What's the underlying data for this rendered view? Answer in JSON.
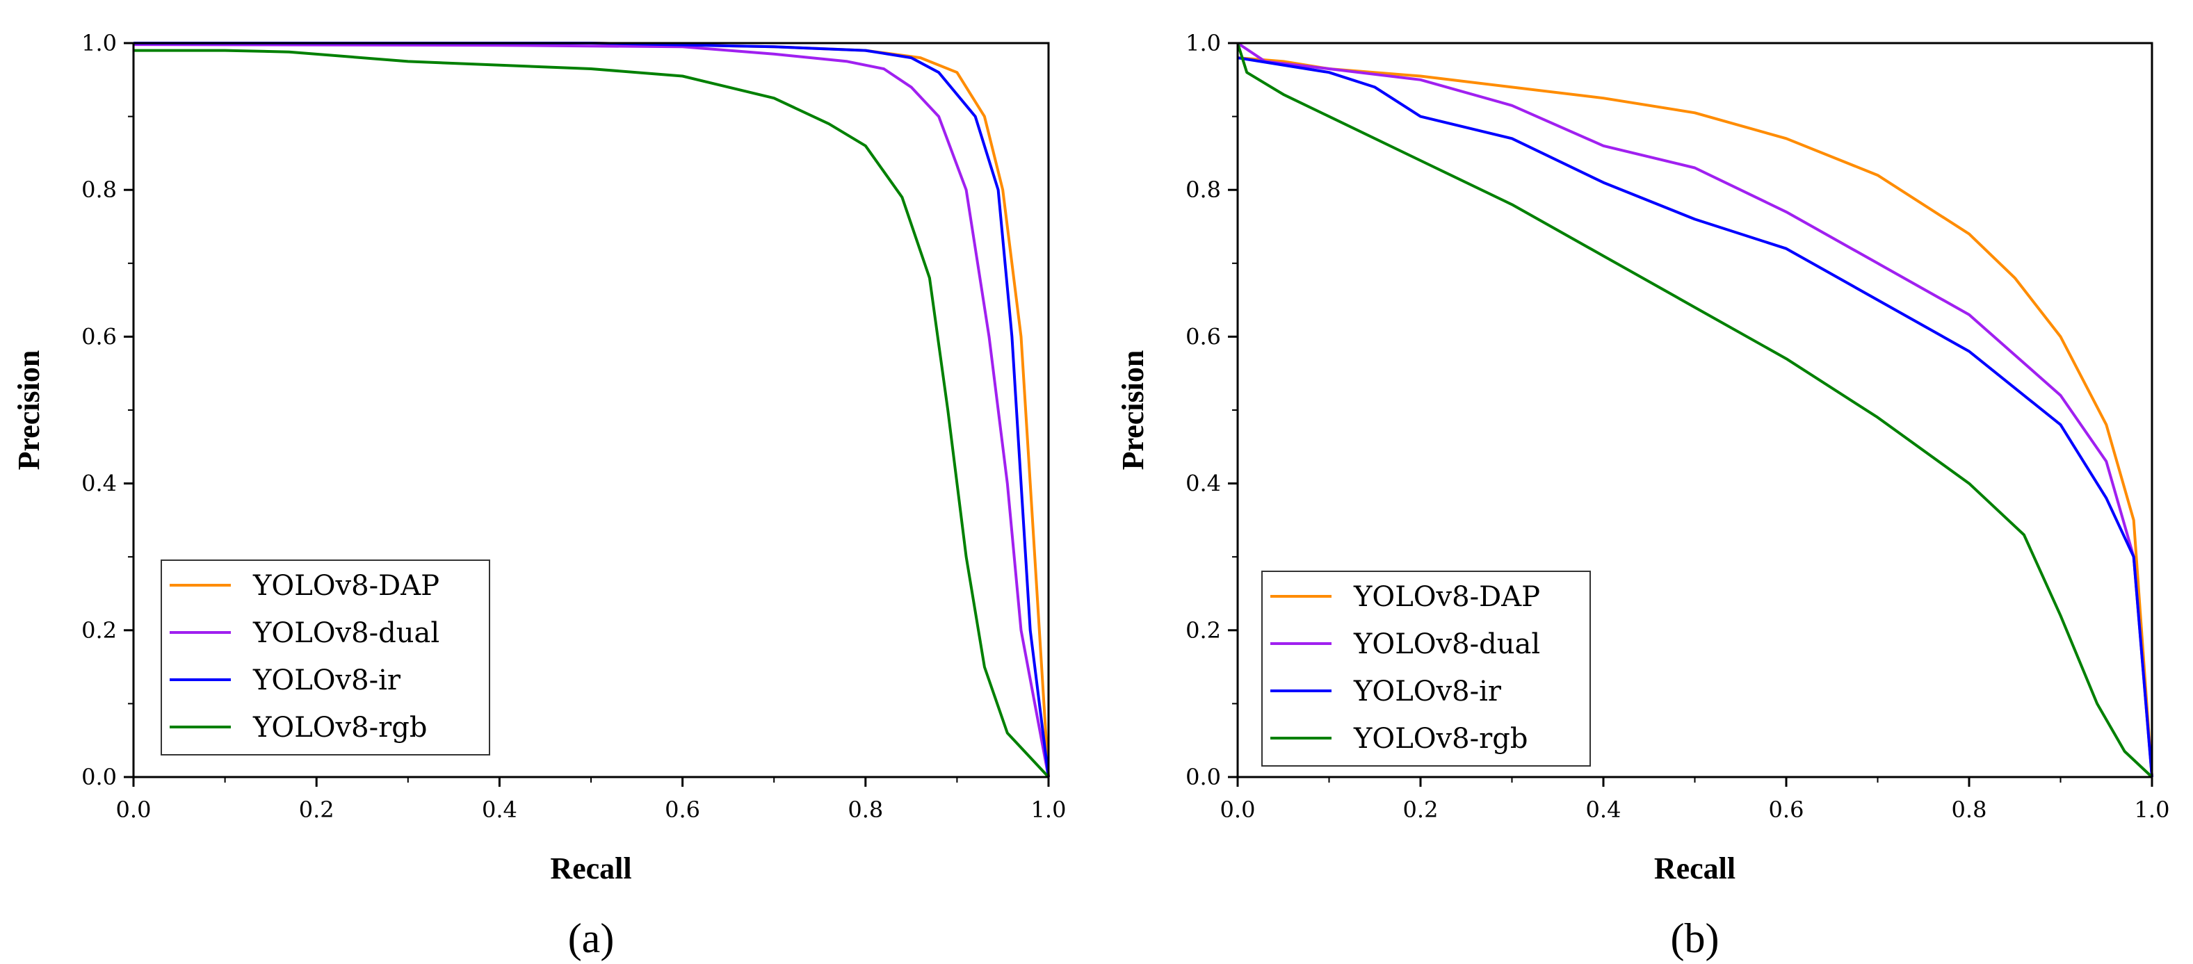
{
  "chart_data": [
    {
      "type": "line",
      "panel_label": "(a)",
      "xlabel": "Recall",
      "ylabel": "Precision",
      "xlim": [
        0,
        1
      ],
      "ylim": [
        0,
        1
      ],
      "xticks": [
        "0.0",
        "0.2",
        "0.4",
        "0.6",
        "0.8",
        "1.0"
      ],
      "yticks": [
        "0.0",
        "0.2",
        "0.4",
        "0.6",
        "0.8",
        "1.0"
      ],
      "legend_position": "bottom-left",
      "series": [
        {
          "name": "YOLOv8-DAP",
          "color": "#ff8c00",
          "points": [
            [
              0,
              1.0
            ],
            [
              0.5,
              1.0
            ],
            [
              0.7,
              0.995
            ],
            [
              0.8,
              0.99
            ],
            [
              0.86,
              0.98
            ],
            [
              0.9,
              0.96
            ],
            [
              0.93,
              0.9
            ],
            [
              0.95,
              0.8
            ],
            [
              0.97,
              0.6
            ],
            [
              0.98,
              0.4
            ],
            [
              0.99,
              0.2
            ],
            [
              1.0,
              0.0
            ]
          ]
        },
        {
          "name": "YOLOv8-dual",
          "color": "#a020f0",
          "points": [
            [
              0,
              0.998
            ],
            [
              0.4,
              0.997
            ],
            [
              0.6,
              0.995
            ],
            [
              0.7,
              0.985
            ],
            [
              0.78,
              0.975
            ],
            [
              0.82,
              0.965
            ],
            [
              0.85,
              0.94
            ],
            [
              0.88,
              0.9
            ],
            [
              0.91,
              0.8
            ],
            [
              0.935,
              0.6
            ],
            [
              0.955,
              0.4
            ],
            [
              0.97,
              0.2
            ],
            [
              1.0,
              0.0
            ]
          ]
        },
        {
          "name": "YOLOv8-ir",
          "color": "#0000ff",
          "points": [
            [
              0,
              1.0
            ],
            [
              0.5,
              1.0
            ],
            [
              0.7,
              0.995
            ],
            [
              0.8,
              0.99
            ],
            [
              0.85,
              0.98
            ],
            [
              0.88,
              0.96
            ],
            [
              0.92,
              0.9
            ],
            [
              0.945,
              0.8
            ],
            [
              0.96,
              0.6
            ],
            [
              0.97,
              0.4
            ],
            [
              0.98,
              0.2
            ],
            [
              1.0,
              0.0
            ]
          ]
        },
        {
          "name": "YOLOv8-rgb",
          "color": "#008000",
          "points": [
            [
              0,
              0.99
            ],
            [
              0.1,
              0.99
            ],
            [
              0.17,
              0.988
            ],
            [
              0.3,
              0.975
            ],
            [
              0.5,
              0.965
            ],
            [
              0.6,
              0.955
            ],
            [
              0.7,
              0.925
            ],
            [
              0.76,
              0.89
            ],
            [
              0.8,
              0.86
            ],
            [
              0.84,
              0.79
            ],
            [
              0.87,
              0.68
            ],
            [
              0.89,
              0.5
            ],
            [
              0.91,
              0.3
            ],
            [
              0.93,
              0.15
            ],
            [
              0.955,
              0.06
            ],
            [
              1.0,
              0.0
            ]
          ]
        }
      ]
    },
    {
      "type": "line",
      "panel_label": "(b)",
      "xlabel": "Recall",
      "ylabel": "Precision",
      "xlim": [
        0,
        1
      ],
      "ylim": [
        0,
        1
      ],
      "xticks": [
        "0.0",
        "0.2",
        "0.4",
        "0.6",
        "0.8",
        "1.0"
      ],
      "yticks": [
        "0.0",
        "0.2",
        "0.4",
        "0.6",
        "0.8",
        "1.0"
      ],
      "legend_position": "bottom-left",
      "series": [
        {
          "name": "YOLOv8-DAP",
          "color": "#ff8c00",
          "points": [
            [
              0,
              0.98
            ],
            [
              0.05,
              0.975
            ],
            [
              0.1,
              0.965
            ],
            [
              0.2,
              0.955
            ],
            [
              0.3,
              0.94
            ],
            [
              0.4,
              0.925
            ],
            [
              0.5,
              0.905
            ],
            [
              0.6,
              0.87
            ],
            [
              0.7,
              0.82
            ],
            [
              0.8,
              0.74
            ],
            [
              0.85,
              0.68
            ],
            [
              0.9,
              0.6
            ],
            [
              0.95,
              0.48
            ],
            [
              0.98,
              0.35
            ],
            [
              1.0,
              0.0
            ]
          ]
        },
        {
          "name": "YOLOv8-dual",
          "color": "#a020f0",
          "points": [
            [
              0,
              1.0
            ],
            [
              0.03,
              0.975
            ],
            [
              0.1,
              0.965
            ],
            [
              0.2,
              0.95
            ],
            [
              0.3,
              0.915
            ],
            [
              0.4,
              0.86
            ],
            [
              0.5,
              0.83
            ],
            [
              0.6,
              0.77
            ],
            [
              0.7,
              0.7
            ],
            [
              0.8,
              0.63
            ],
            [
              0.9,
              0.52
            ],
            [
              0.95,
              0.43
            ],
            [
              0.98,
              0.3
            ],
            [
              1.0,
              0.0
            ]
          ]
        },
        {
          "name": "YOLOv8-ir",
          "color": "#0000ff",
          "points": [
            [
              0,
              0.98
            ],
            [
              0.1,
              0.96
            ],
            [
              0.15,
              0.94
            ],
            [
              0.2,
              0.9
            ],
            [
              0.3,
              0.87
            ],
            [
              0.4,
              0.81
            ],
            [
              0.5,
              0.76
            ],
            [
              0.6,
              0.72
            ],
            [
              0.7,
              0.65
            ],
            [
              0.8,
              0.58
            ],
            [
              0.9,
              0.48
            ],
            [
              0.95,
              0.38
            ],
            [
              0.98,
              0.3
            ],
            [
              1.0,
              0.0
            ]
          ]
        },
        {
          "name": "YOLOv8-rgb",
          "color": "#008000",
          "points": [
            [
              0,
              1.0
            ],
            [
              0.01,
              0.96
            ],
            [
              0.05,
              0.93
            ],
            [
              0.1,
              0.9
            ],
            [
              0.2,
              0.84
            ],
            [
              0.3,
              0.78
            ],
            [
              0.4,
              0.71
            ],
            [
              0.5,
              0.64
            ],
            [
              0.6,
              0.57
            ],
            [
              0.7,
              0.49
            ],
            [
              0.8,
              0.4
            ],
            [
              0.86,
              0.33
            ],
            [
              0.9,
              0.22
            ],
            [
              0.94,
              0.1
            ],
            [
              0.97,
              0.035
            ],
            [
              1.0,
              0.0
            ]
          ]
        }
      ]
    }
  ]
}
